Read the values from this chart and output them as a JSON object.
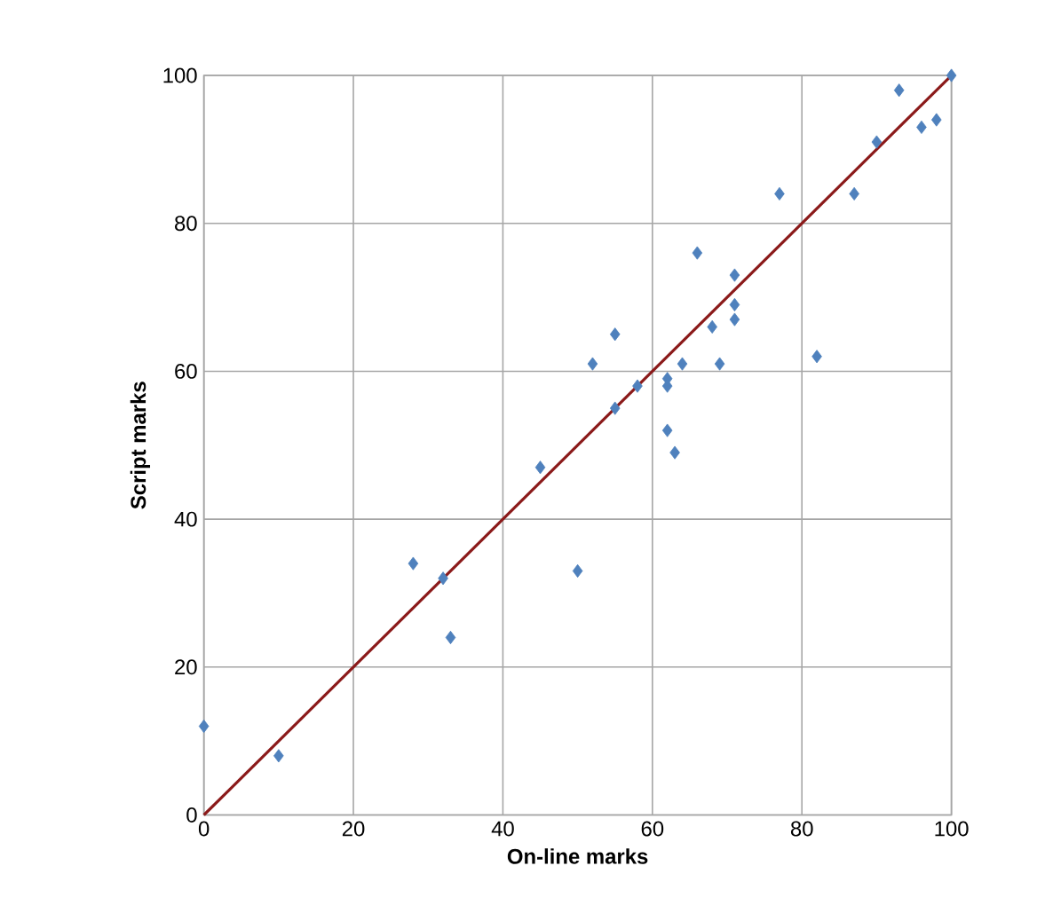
{
  "chart_data": {
    "type": "scatter",
    "xlabel": "On-line marks",
    "ylabel": "Script marks",
    "xlim": [
      0,
      100
    ],
    "ylim": [
      0,
      100
    ],
    "xticks": [
      0,
      20,
      40,
      60,
      80,
      100
    ],
    "yticks": [
      0,
      20,
      40,
      60,
      80,
      100
    ],
    "grid": true,
    "marker": "diamond",
    "series": [
      {
        "color": "#4f81bd",
        "x": [
          0,
          10,
          28,
          32,
          33,
          45,
          50,
          52,
          55,
          55,
          58,
          66,
          62,
          62,
          62,
          63,
          64,
          68,
          69,
          71,
          71,
          71,
          77,
          82,
          87,
          90,
          93,
          96,
          98,
          100
        ],
        "values": [
          12,
          8,
          34,
          32,
          24,
          47,
          33,
          61,
          65,
          55,
          58,
          76,
          59,
          58,
          52,
          49,
          61,
          66,
          61,
          73,
          69,
          67,
          84,
          62,
          84,
          91,
          98,
          93,
          94,
          100
        ]
      },
      {
        "type": "line",
        "color": "#8b1a1a",
        "marker": "none",
        "x": [
          0,
          100
        ],
        "values": [
          0,
          100
        ]
      }
    ]
  }
}
